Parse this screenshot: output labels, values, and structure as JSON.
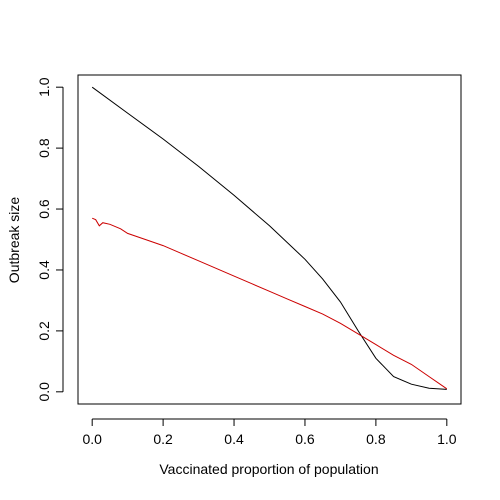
{
  "chart_data": {
    "type": "line",
    "title": "",
    "xlabel": "Vaccinated proportion of population",
    "ylabel": "Outbreak size",
    "xlim": [
      -0.04,
      1.04
    ],
    "ylim": [
      -0.04,
      1.04
    ],
    "x_ticks": [
      0.0,
      0.2,
      0.4,
      0.6,
      0.8,
      1.0
    ],
    "x_tick_labels": [
      "0.0",
      "0.2",
      "0.4",
      "0.6",
      "0.8",
      "1.0"
    ],
    "y_ticks": [
      0.0,
      0.2,
      0.4,
      0.6,
      0.8,
      1.0
    ],
    "y_tick_labels": [
      "0.0",
      "0.2",
      "0.4",
      "0.6",
      "0.8",
      "1.0"
    ],
    "grid": false,
    "legend": "none",
    "series": [
      {
        "color": "#000000",
        "x": [
          0.0,
          0.1,
          0.2,
          0.3,
          0.4,
          0.5,
          0.6,
          0.65,
          0.7,
          0.75,
          0.8,
          0.85,
          0.9,
          0.95,
          1.0
        ],
        "y": [
          1.0,
          0.915,
          0.83,
          0.74,
          0.645,
          0.545,
          0.435,
          0.37,
          0.295,
          0.2,
          0.11,
          0.05,
          0.025,
          0.012,
          0.008
        ]
      },
      {
        "color": "#cc0000",
        "x": [
          0.0,
          0.01,
          0.02,
          0.03,
          0.05,
          0.08,
          0.1,
          0.15,
          0.2,
          0.25,
          0.3,
          0.35,
          0.4,
          0.45,
          0.5,
          0.55,
          0.6,
          0.65,
          0.7,
          0.75,
          0.8,
          0.85,
          0.9,
          0.95,
          1.0
        ],
        "y": [
          0.57,
          0.565,
          0.545,
          0.555,
          0.55,
          0.535,
          0.52,
          0.5,
          0.48,
          0.455,
          0.43,
          0.405,
          0.38,
          0.355,
          0.33,
          0.305,
          0.28,
          0.255,
          0.225,
          0.19,
          0.155,
          0.12,
          0.09,
          0.05,
          0.01
        ]
      }
    ]
  }
}
